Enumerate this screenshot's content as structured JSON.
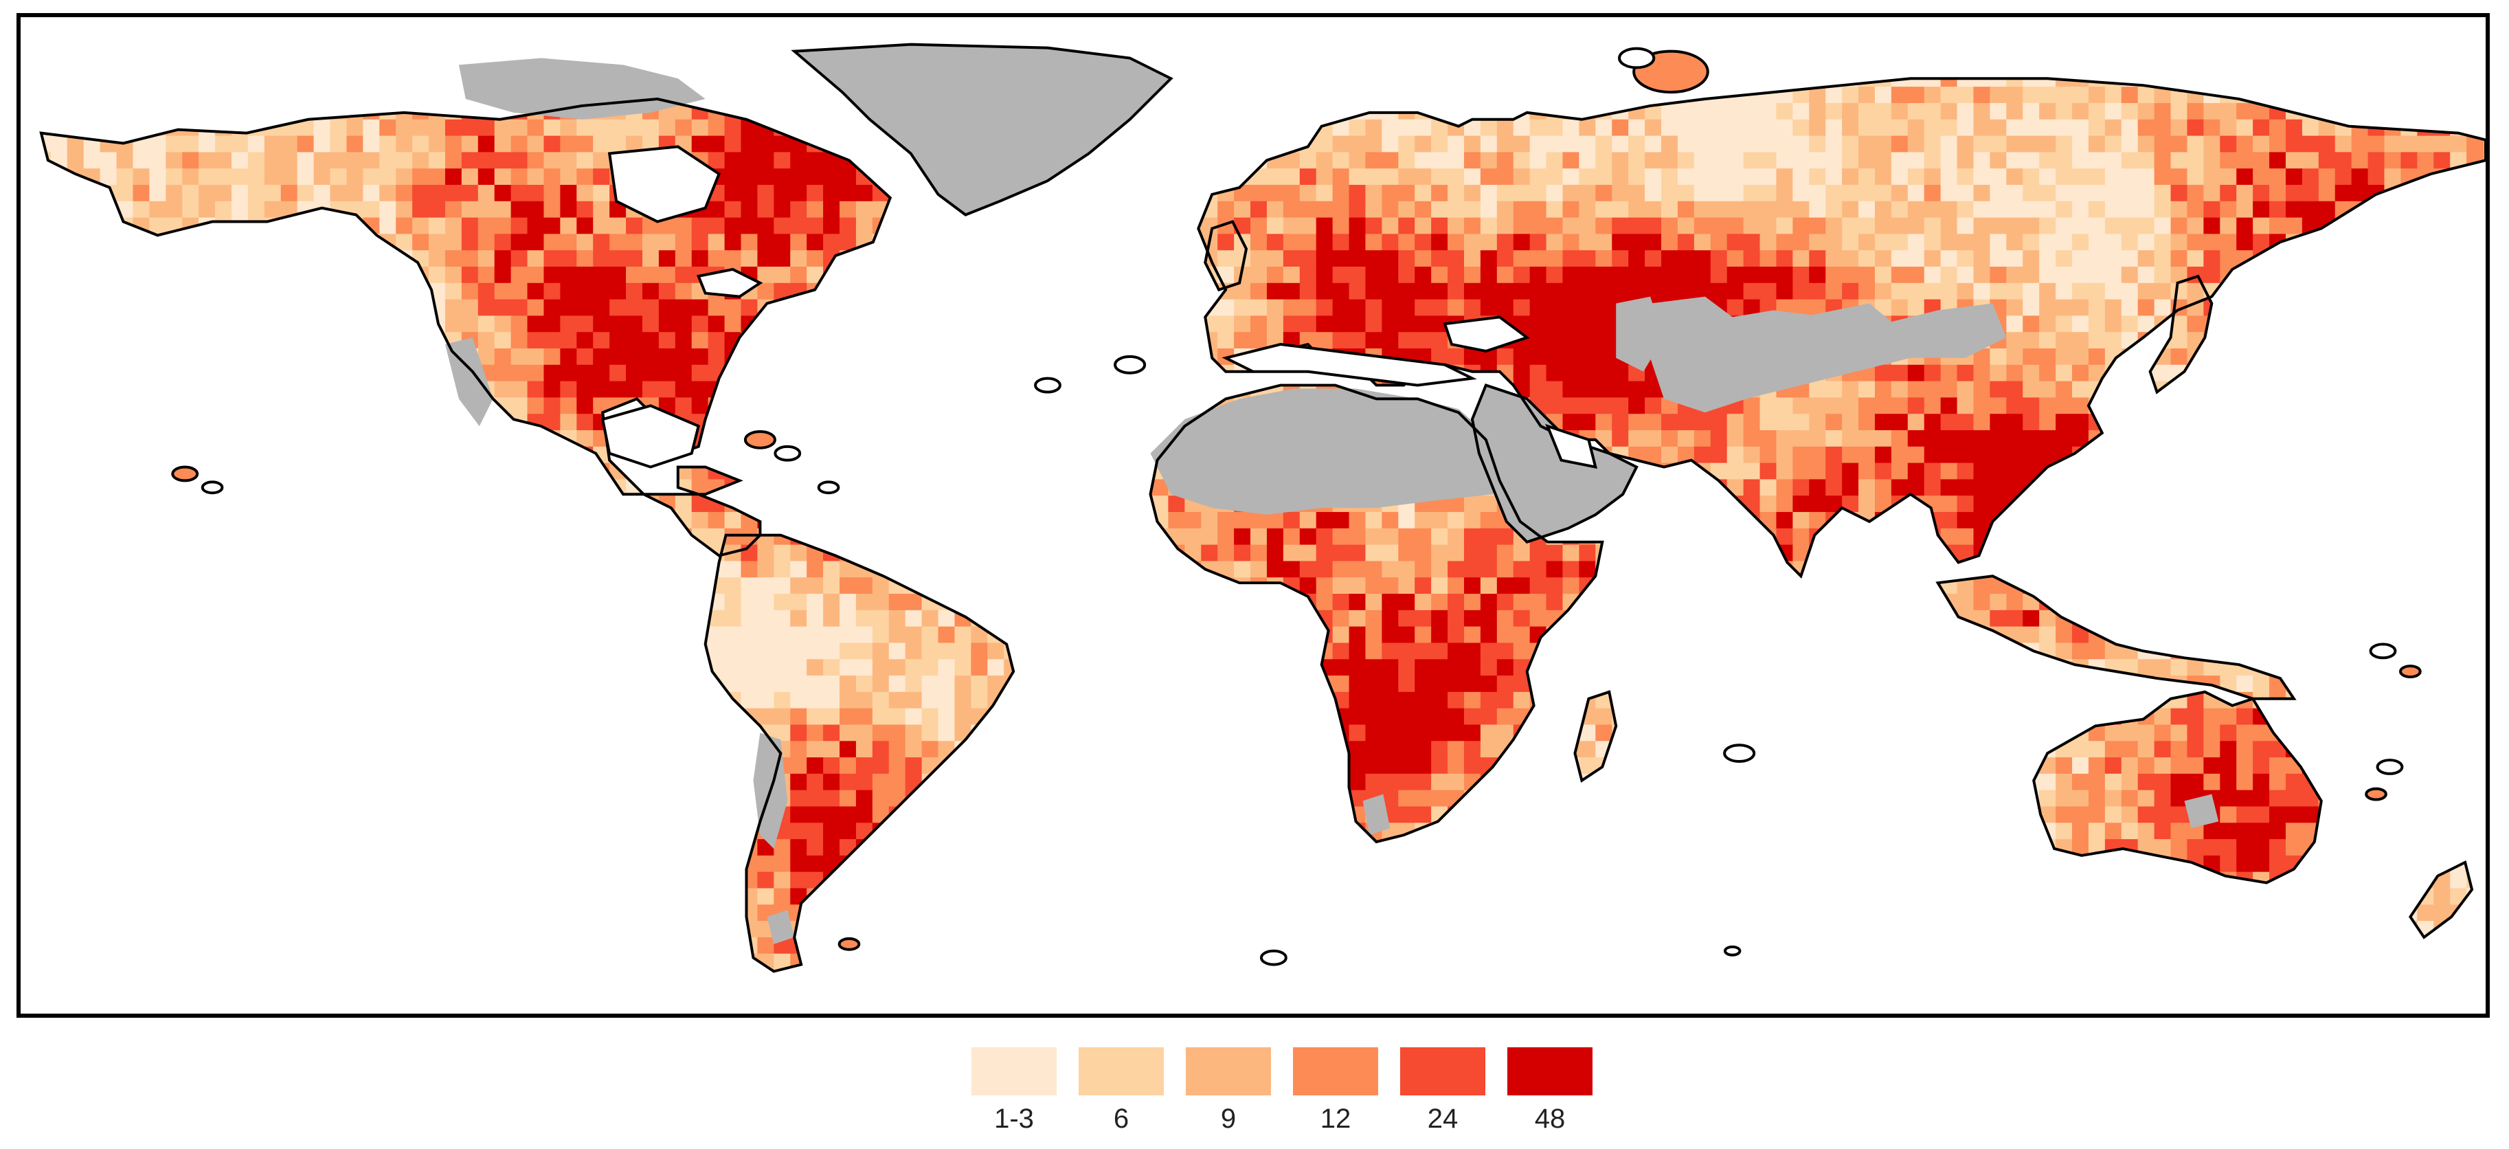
{
  "legend": {
    "classes": [
      {
        "label": "1-3",
        "color": "#fee8d0"
      },
      {
        "label": "6",
        "color": "#fdd3a2"
      },
      {
        "label": "9",
        "color": "#fcb77f"
      },
      {
        "label": "12",
        "color": "#fc8b56"
      },
      {
        "label": "24",
        "color": "#f64a31"
      },
      {
        "label": "48",
        "color": "#d40000"
      }
    ]
  },
  "map": {
    "no_data_color": "#b4b4b4",
    "outline_color": "#000000",
    "ocean_color": "#ffffff"
  }
}
